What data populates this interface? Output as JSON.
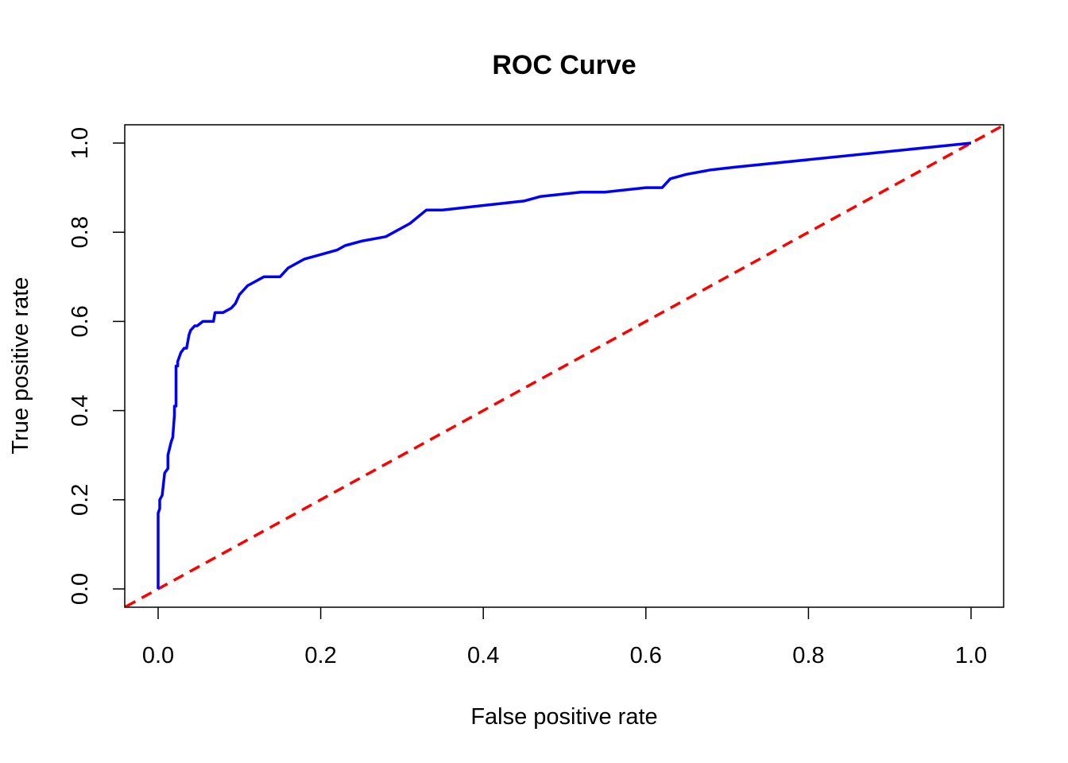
{
  "chart_data": {
    "type": "line",
    "title": "ROC Curve",
    "xlabel": "False positive rate",
    "ylabel": "True positive rate",
    "xlim": [
      0,
      1
    ],
    "ylim": [
      0,
      1
    ],
    "x_ticks": [
      "0.0",
      "0.2",
      "0.4",
      "0.6",
      "0.8",
      "1.0"
    ],
    "y_ticks": [
      "0.0",
      "0.2",
      "0.4",
      "0.6",
      "0.8",
      "1.0"
    ],
    "grid": false,
    "series": [
      {
        "color": "#0000ff",
        "style": "solid",
        "x": [
          0.0,
          0.0,
          0.0,
          0.002,
          0.002,
          0.005,
          0.008,
          0.008,
          0.012,
          0.012,
          0.016,
          0.018,
          0.02,
          0.02,
          0.022,
          0.022,
          0.024,
          0.024,
          0.026,
          0.028,
          0.028,
          0.032,
          0.035,
          0.038,
          0.038,
          0.04,
          0.045,
          0.048,
          0.055,
          0.06,
          0.068,
          0.07,
          0.08,
          0.09,
          0.095,
          0.1,
          0.11,
          0.12,
          0.13,
          0.15,
          0.16,
          0.17,
          0.18,
          0.2,
          0.22,
          0.23,
          0.25,
          0.28,
          0.29,
          0.3,
          0.31,
          0.33,
          0.35,
          0.4,
          0.45,
          0.47,
          0.52,
          0.55,
          0.6,
          0.62,
          0.63,
          0.65,
          0.68,
          0.71,
          1.0
        ],
        "y": [
          0.0,
          0.07,
          0.17,
          0.18,
          0.2,
          0.21,
          0.26,
          0.26,
          0.27,
          0.3,
          0.33,
          0.34,
          0.39,
          0.41,
          0.41,
          0.5,
          0.5,
          0.51,
          0.52,
          0.53,
          0.53,
          0.54,
          0.54,
          0.57,
          0.57,
          0.58,
          0.59,
          0.59,
          0.6,
          0.6,
          0.6,
          0.62,
          0.62,
          0.63,
          0.64,
          0.66,
          0.68,
          0.69,
          0.7,
          0.7,
          0.72,
          0.73,
          0.74,
          0.75,
          0.76,
          0.77,
          0.78,
          0.79,
          0.8,
          0.81,
          0.82,
          0.85,
          0.85,
          0.86,
          0.87,
          0.88,
          0.89,
          0.89,
          0.9,
          0.9,
          0.92,
          0.93,
          0.94,
          0.946,
          1.0
        ]
      },
      {
        "color": "#ff0000",
        "style": "dashed",
        "x": [
          -0.04,
          1.04
        ],
        "y": [
          -0.04,
          1.04
        ]
      }
    ]
  }
}
